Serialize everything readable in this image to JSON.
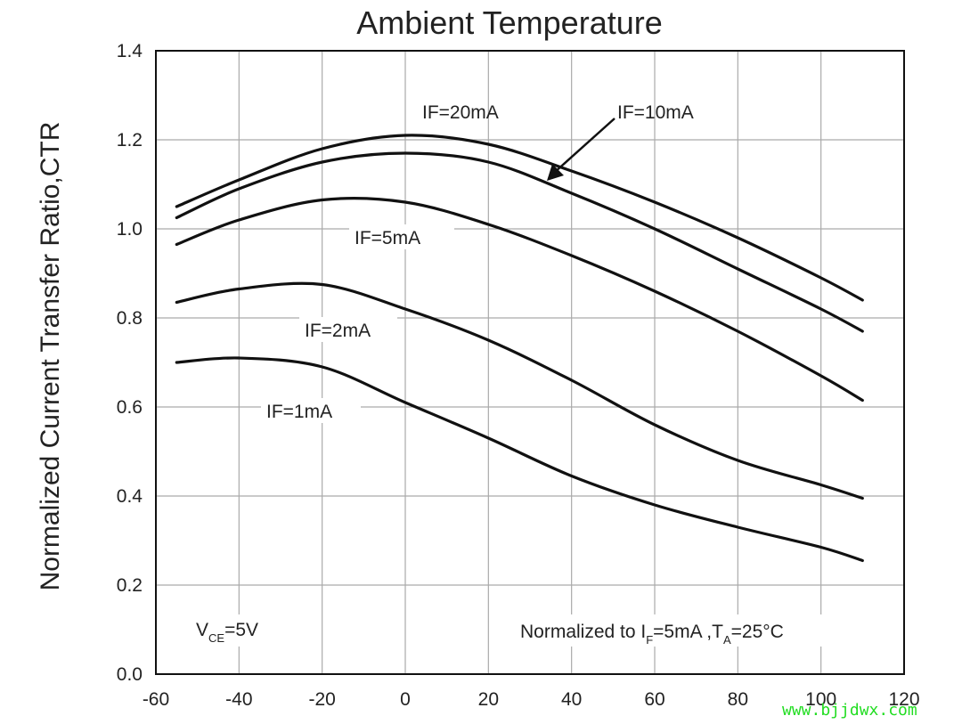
{
  "chart_data": {
    "type": "line",
    "title": "Ambient Temperature",
    "xlabel": "",
    "ylabel": "Normalized Current Transfer Ratio,CTR",
    "xlim": [
      -60,
      120
    ],
    "ylim": [
      0.0,
      1.4
    ],
    "xticks": [
      "-60",
      "-40",
      "-20",
      "0",
      "20",
      "40",
      "60",
      "80",
      "100",
      "120"
    ],
    "yticks": [
      "0.0",
      "0.2",
      "0.4",
      "0.6",
      "0.8",
      "1.0",
      "1.2",
      "1.4"
    ],
    "grid": true,
    "series": [
      {
        "name": "IF=20mA",
        "x": [
          -55,
          -40,
          -20,
          0,
          20,
          40,
          60,
          80,
          100,
          110
        ],
        "y": [
          1.05,
          1.11,
          1.18,
          1.21,
          1.19,
          1.13,
          1.06,
          0.98,
          0.89,
          0.84
        ]
      },
      {
        "name": "IF=10mA",
        "x": [
          -55,
          -40,
          -20,
          0,
          20,
          40,
          60,
          80,
          100,
          110
        ],
        "y": [
          1.025,
          1.09,
          1.15,
          1.17,
          1.15,
          1.08,
          1.0,
          0.91,
          0.82,
          0.77
        ]
      },
      {
        "name": "IF=5mA",
        "x": [
          -55,
          -40,
          -20,
          0,
          20,
          40,
          60,
          80,
          100,
          110
        ],
        "y": [
          0.965,
          1.02,
          1.065,
          1.06,
          1.01,
          0.94,
          0.86,
          0.77,
          0.67,
          0.615
        ]
      },
      {
        "name": "IF=2mA",
        "x": [
          -55,
          -40,
          -20,
          0,
          20,
          40,
          60,
          80,
          100,
          110
        ],
        "y": [
          0.835,
          0.865,
          0.875,
          0.82,
          0.75,
          0.66,
          0.56,
          0.48,
          0.425,
          0.395
        ]
      },
      {
        "name": "IF=1mA",
        "x": [
          -55,
          -40,
          -20,
          0,
          20,
          40,
          60,
          80,
          100,
          110
        ],
        "y": [
          0.7,
          0.71,
          0.69,
          0.61,
          0.53,
          0.445,
          0.38,
          0.33,
          0.285,
          0.255
        ]
      }
    ],
    "annotations": {
      "vce": {
        "main": "V",
        "sub": "CE",
        "rest": "=5V"
      },
      "norm": {
        "prefix": "Normalized to I",
        "sub1": "F",
        "mid": "=5mA ,T",
        "sub2": "A",
        "suffix": "=25°C"
      }
    }
  },
  "watermark": "www.bjjdwx.com",
  "colors": {
    "line": "#111111",
    "grid": "#aaaaaa",
    "watermark": "#22dd22"
  }
}
